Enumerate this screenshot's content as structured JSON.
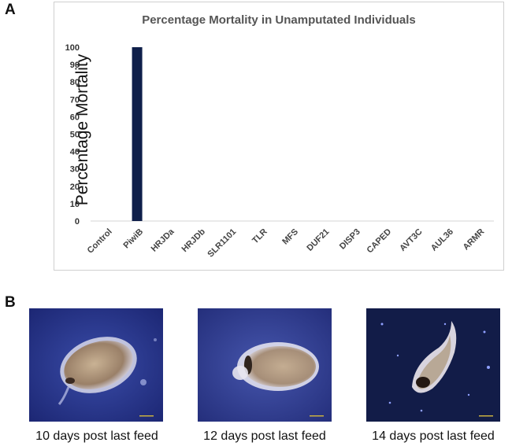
{
  "panel_a_label": "A",
  "panel_b_label": "B",
  "chart_data": {
    "type": "bar",
    "title": "Percentage Mortality in Unamputated Individuals",
    "xlabel": "",
    "ylabel": "Percentage Mortality",
    "categories": [
      "Control",
      "PiwiB",
      "HRJDa",
      "HRJDb",
      "SLR1101",
      "TLR",
      "MFS",
      "DUF21",
      "DISP3",
      "CAPED",
      "AVT3C",
      "AUL36",
      "ARMR"
    ],
    "values": [
      0,
      100,
      0,
      0,
      0,
      0,
      0,
      0,
      0,
      0,
      0,
      0,
      0
    ],
    "ylim": [
      0,
      100
    ],
    "yticks": [
      0,
      10,
      20,
      30,
      40,
      50,
      60,
      70,
      80,
      90,
      100
    ],
    "bar_color": "#0f1f4a",
    "grid": false,
    "legend": "none"
  },
  "photos": [
    {
      "caption": "10 days post last feed"
    },
    {
      "caption": "12 days post last feed"
    },
    {
      "caption": "14 days post last feed"
    }
  ]
}
